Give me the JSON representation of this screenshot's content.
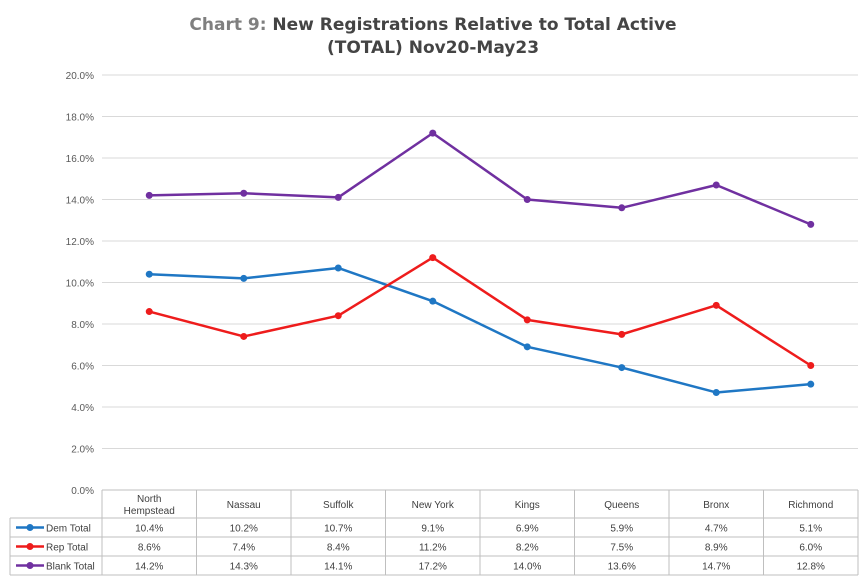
{
  "chart_data": {
    "type": "line",
    "title_prefix": "Chart 9:",
    "title_main": "New Registrations Relative to Total Active",
    "title_line2": "(TOTAL) Nov20-May23",
    "categories": [
      "North Hempstead",
      "Nassau",
      "Suffolk",
      "New York",
      "Kings",
      "Queens",
      "Bronx",
      "Richmond"
    ],
    "category_lines": [
      [
        "North",
        "Hempstead"
      ],
      [
        "Nassau"
      ],
      [
        "Suffolk"
      ],
      [
        "New York"
      ],
      [
        "Kings"
      ],
      [
        "Queens"
      ],
      [
        "Bronx"
      ],
      [
        "Richmond"
      ]
    ],
    "ylim": [
      0,
      20
    ],
    "yticks": [
      0,
      2,
      4,
      6,
      8,
      10,
      12,
      14,
      16,
      18,
      20
    ],
    "ytick_labels": [
      "0.0%",
      "2.0%",
      "4.0%",
      "6.0%",
      "8.0%",
      "10.0%",
      "12.0%",
      "14.0%",
      "16.0%",
      "18.0%",
      "20.0%"
    ],
    "grid": true,
    "legend": "data-table",
    "series": [
      {
        "name": "Dem Total",
        "color": "#1f77c4",
        "values": [
          10.4,
          10.2,
          10.7,
          9.1,
          6.9,
          5.9,
          4.7,
          5.1
        ],
        "labels": [
          "10.4%",
          "10.2%",
          "10.7%",
          "9.1%",
          "6.9%",
          "5.9%",
          "4.7%",
          "5.1%"
        ]
      },
      {
        "name": "Rep Total",
        "color": "#ee1c1c",
        "values": [
          8.6,
          7.4,
          8.4,
          11.2,
          8.2,
          7.5,
          8.9,
          6.0
        ],
        "labels": [
          "8.6%",
          "7.4%",
          "8.4%",
          "11.2%",
          "8.2%",
          "7.5%",
          "8.9%",
          "6.0%"
        ]
      },
      {
        "name": "Blank Total",
        "color": "#7030a0",
        "values": [
          14.2,
          14.3,
          14.1,
          17.2,
          14.0,
          13.6,
          14.7,
          12.8
        ],
        "labels": [
          "14.2%",
          "14.3%",
          "14.1%",
          "17.2%",
          "14.0%",
          "13.6%",
          "14.7%",
          "12.8%"
        ]
      }
    ]
  }
}
